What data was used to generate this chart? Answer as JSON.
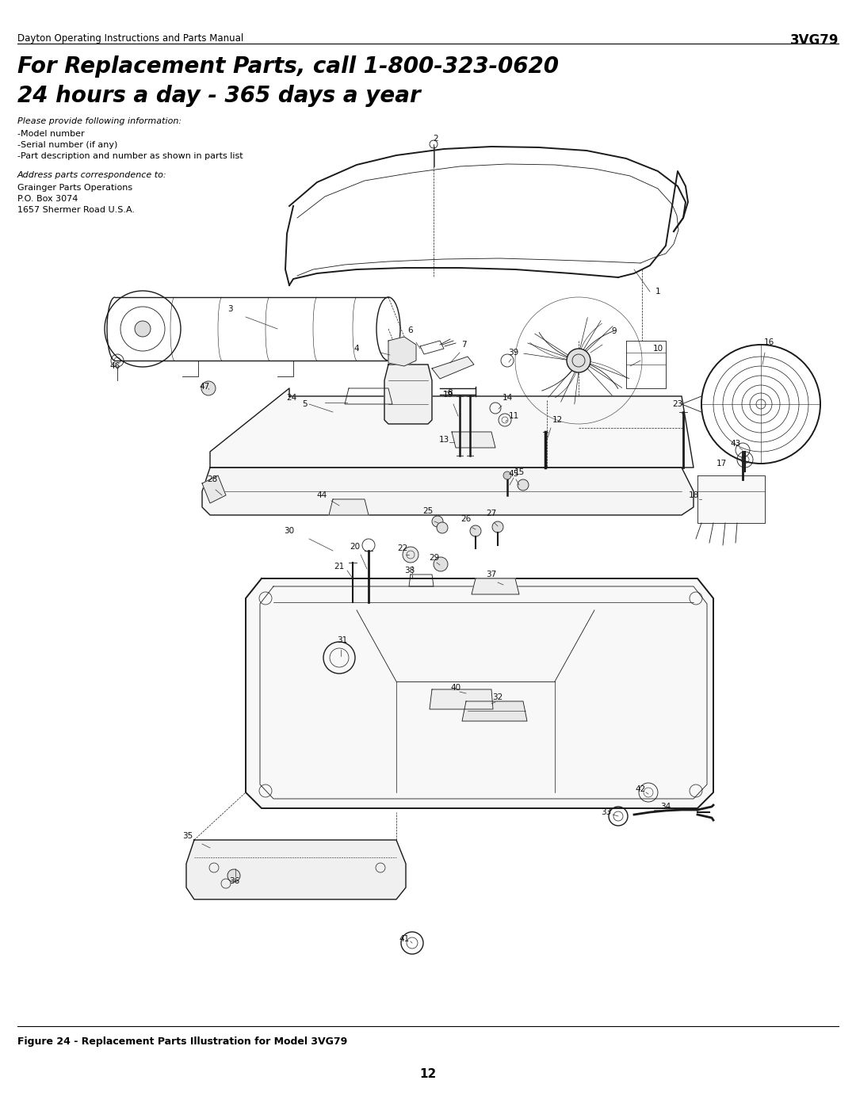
{
  "page_header_left": "Dayton Operating Instructions and Parts Manual",
  "page_header_right": "3VG79",
  "title_line1": "For Replacement Parts, call 1-800-323-0620",
  "title_line2": "24 hours a day - 365 days a year",
  "info_italic": "Please provide following information:",
  "info_lines": [
    "-Model number",
    "-Serial number (if any)",
    "-Part description and number as shown in parts list"
  ],
  "address_italic": "Address parts correspondence to:",
  "address_lines": [
    "Grainger Parts Operations",
    "P.O. Box 3074",
    "1657 Shermer Road U.S.A."
  ],
  "figure_caption": "Figure 24 - Replacement Parts Illustration for Model 3VG79",
  "page_number": "12",
  "bg_color": "#ffffff",
  "text_color": "#000000"
}
